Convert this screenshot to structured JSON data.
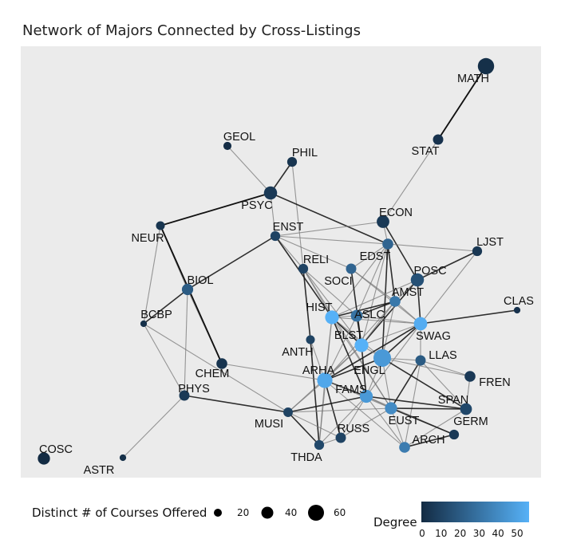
{
  "chart_data": {
    "type": "network",
    "title": "Network of Majors Connected by Cross-Listings",
    "nodes": [
      {
        "id": "MATH",
        "size": 45,
        "degree": 2
      },
      {
        "id": "STAT",
        "size": 12,
        "degree": 3
      },
      {
        "id": "GEOL",
        "size": 5,
        "degree": 1
      },
      {
        "id": "PHIL",
        "size": 10,
        "degree": 4
      },
      {
        "id": "PSYC",
        "size": 25,
        "degree": 6
      },
      {
        "id": "ECON",
        "size": 22,
        "degree": 6
      },
      {
        "id": "NEUR",
        "size": 7,
        "degree": 4
      },
      {
        "id": "ENST",
        "size": 10,
        "degree": 10
      },
      {
        "id": "LJST",
        "size": 10,
        "degree": 5
      },
      {
        "id": "EDST",
        "size": 14,
        "degree": 24
      },
      {
        "id": "RELI",
        "size": 10,
        "degree": 10
      },
      {
        "id": "POSC",
        "size": 25,
        "degree": 16
      },
      {
        "id": "SOCI",
        "size": 12,
        "degree": 24
      },
      {
        "id": "BIOL",
        "size": 16,
        "degree": 20
      },
      {
        "id": "AMST",
        "size": 14,
        "degree": 32
      },
      {
        "id": "CLAS",
        "size": 2,
        "degree": 3
      },
      {
        "id": "HIST",
        "size": 28,
        "degree": 56
      },
      {
        "id": "ASLC",
        "size": 18,
        "degree": 30
      },
      {
        "id": "BCBP",
        "size": 2,
        "degree": 2
      },
      {
        "id": "SWAG",
        "size": 26,
        "degree": 54
      },
      {
        "id": "BLST",
        "size": 28,
        "degree": 56
      },
      {
        "id": "ANTH",
        "size": 7,
        "degree": 10
      },
      {
        "id": "LLAS",
        "size": 12,
        "degree": 20
      },
      {
        "id": "ENGL",
        "size": 55,
        "degree": 46
      },
      {
        "id": "CHEM",
        "size": 14,
        "degree": 4
      },
      {
        "id": "ARHA",
        "size": 38,
        "degree": 52
      },
      {
        "id": "FREN",
        "size": 14,
        "degree": 6
      },
      {
        "id": "PHYS",
        "size": 12,
        "degree": 6
      },
      {
        "id": "FAMS",
        "size": 24,
        "degree": 46
      },
      {
        "id": "SPAN",
        "size": 18,
        "degree": 12
      },
      {
        "id": "MUSI",
        "size": 9,
        "degree": 10
      },
      {
        "id": "EUST",
        "size": 20,
        "degree": 40
      },
      {
        "id": "GERM",
        "size": 10,
        "degree": 6
      },
      {
        "id": "RUSS",
        "size": 12,
        "degree": 10
      },
      {
        "id": "ARCH",
        "size": 14,
        "degree": 34
      },
      {
        "id": "THDA",
        "size": 10,
        "degree": 12
      },
      {
        "id": "COSC",
        "size": 20,
        "degree": 0
      },
      {
        "id": "ASTR",
        "size": 2,
        "degree": 2
      }
    ],
    "edges": [
      [
        "MATH",
        "STAT"
      ],
      [
        "STAT",
        "ECON"
      ],
      [
        "GEOL",
        "PSYC"
      ],
      [
        "PHIL",
        "PSYC"
      ],
      [
        "PHIL",
        "RELI"
      ],
      [
        "PSYC",
        "NEUR"
      ],
      [
        "PSYC",
        "EDST"
      ],
      [
        "NEUR",
        "BIOL"
      ],
      [
        "NEUR",
        "BCBP"
      ],
      [
        "NEUR",
        "CHEM"
      ],
      [
        "ENST",
        "ECON"
      ],
      [
        "ENST",
        "PSYC"
      ],
      [
        "ENST",
        "BIOL"
      ],
      [
        "ENST",
        "RELI"
      ],
      [
        "ENST",
        "SOCI"
      ],
      [
        "ENST",
        "HIST"
      ],
      [
        "ENST",
        "EDST"
      ],
      [
        "ECON",
        "EDST"
      ],
      [
        "ECON",
        "POSC"
      ],
      [
        "EDST",
        "LJST"
      ],
      [
        "EDST",
        "SOCI"
      ],
      [
        "EDST",
        "AMST"
      ],
      [
        "EDST",
        "HIST"
      ],
      [
        "EDST",
        "BLST"
      ],
      [
        "EDST",
        "ENGL"
      ],
      [
        "EDST",
        "ASLC"
      ],
      [
        "LJST",
        "SWAG"
      ],
      [
        "LJST",
        "POSC"
      ],
      [
        "RELI",
        "HIST"
      ],
      [
        "RELI",
        "ASLC"
      ],
      [
        "RELI",
        "ANTH"
      ],
      [
        "RELI",
        "EUST"
      ],
      [
        "RELI",
        "BLST"
      ],
      [
        "POSC",
        "SWAG"
      ],
      [
        "POSC",
        "HIST"
      ],
      [
        "POSC",
        "AMST"
      ],
      [
        "POSC",
        "BLST"
      ],
      [
        "SOCI",
        "AMST"
      ],
      [
        "SOCI",
        "SWAG"
      ],
      [
        "SOCI",
        "BLST"
      ],
      [
        "BIOL",
        "CHEM"
      ],
      [
        "BIOL",
        "PHYS"
      ],
      [
        "BIOL",
        "BCBP"
      ],
      [
        "BCBP",
        "PHYS"
      ],
      [
        "BCBP",
        "MUSI"
      ],
      [
        "AMST",
        "HIST"
      ],
      [
        "AMST",
        "SWAG"
      ],
      [
        "AMST",
        "ENGL"
      ],
      [
        "AMST",
        "ASLC"
      ],
      [
        "AMST",
        "BLST"
      ],
      [
        "AMST",
        "ARHA"
      ],
      [
        "CLAS",
        "SWAG"
      ],
      [
        "HIST",
        "ASLC"
      ],
      [
        "HIST",
        "SWAG"
      ],
      [
        "HIST",
        "BLST"
      ],
      [
        "HIST",
        "ENGL"
      ],
      [
        "HIST",
        "ARHA"
      ],
      [
        "HIST",
        "FAMS"
      ],
      [
        "HIST",
        "EUST"
      ],
      [
        "ASLC",
        "SWAG"
      ],
      [
        "ASLC",
        "BLST"
      ],
      [
        "ASLC",
        "ARHA"
      ],
      [
        "SWAG",
        "BLST"
      ],
      [
        "SWAG",
        "ENGL"
      ],
      [
        "SWAG",
        "LLAS"
      ],
      [
        "SWAG",
        "FAMS"
      ],
      [
        "SWAG",
        "ARHA"
      ],
      [
        "BLST",
        "ENGL"
      ],
      [
        "BLST",
        "ARHA"
      ],
      [
        "BLST",
        "FAMS"
      ],
      [
        "BLST",
        "MUSI"
      ],
      [
        "ANTH",
        "ARHA"
      ],
      [
        "ANTH",
        "THDA"
      ],
      [
        "LLAS",
        "SPAN"
      ],
      [
        "LLAS",
        "FREN"
      ],
      [
        "LLAS",
        "EUST"
      ],
      [
        "LLAS",
        "ENGL"
      ],
      [
        "LLAS",
        "ARCH"
      ],
      [
        "ENGL",
        "ARHA"
      ],
      [
        "ENGL",
        "FAMS"
      ],
      [
        "ENGL",
        "EUST"
      ],
      [
        "ENGL",
        "SPAN"
      ],
      [
        "ENGL",
        "FREN"
      ],
      [
        "CHEM",
        "ARHA"
      ],
      [
        "ARHA",
        "FAMS"
      ],
      [
        "ARHA",
        "MUSI"
      ],
      [
        "ARHA",
        "THDA"
      ],
      [
        "ARHA",
        "RUSS"
      ],
      [
        "ARHA",
        "EUST"
      ],
      [
        "ARHA",
        "ARCH"
      ],
      [
        "PHYS",
        "MUSI"
      ],
      [
        "PHYS",
        "ASTR"
      ],
      [
        "FAMS",
        "EUST"
      ],
      [
        "FAMS",
        "MUSI"
      ],
      [
        "FAMS",
        "THDA"
      ],
      [
        "FAMS",
        "RUSS"
      ],
      [
        "FAMS",
        "SPAN"
      ],
      [
        "FAMS",
        "ARCH"
      ],
      [
        "FAMS",
        "GERM"
      ],
      [
        "SPAN",
        "EUST"
      ],
      [
        "SPAN",
        "ARCH"
      ],
      [
        "SPAN",
        "FREN"
      ],
      [
        "MUSI",
        "THDA"
      ],
      [
        "MUSI",
        "EUST"
      ],
      [
        "MUSI",
        "RUSS"
      ],
      [
        "EUST",
        "GERM"
      ],
      [
        "EUST",
        "ARCH"
      ],
      [
        "EUST",
        "RUSS"
      ],
      [
        "GERM",
        "ARCH"
      ],
      [
        "RUSS",
        "THDA"
      ],
      [
        "THDA",
        "HIST"
      ]
    ],
    "size_legend": {
      "title": "Distinct # of Courses Offered",
      "values": [
        20,
        40,
        60
      ]
    },
    "color_legend": {
      "title": "Degree",
      "ticks": [
        0,
        10,
        20,
        30,
        40,
        50
      ],
      "low": "#132b43",
      "high": "#56b1f7"
    },
    "panel_background": "#ebebeb"
  }
}
